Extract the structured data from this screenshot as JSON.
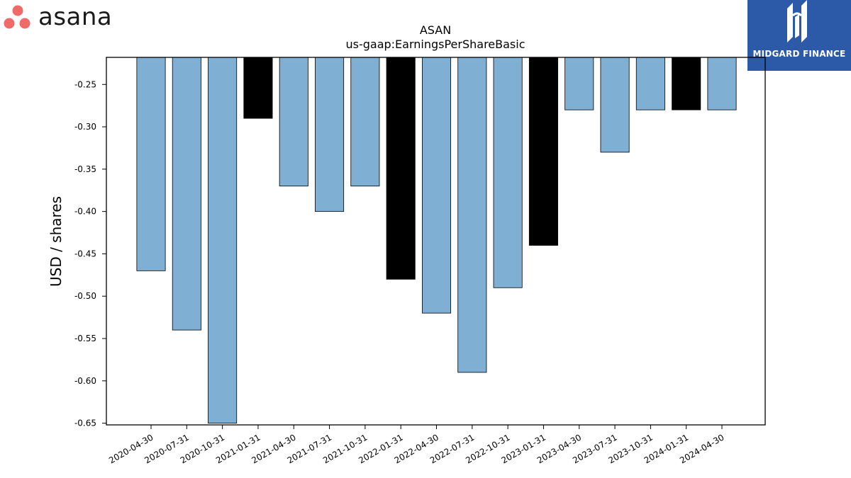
{
  "brand": {
    "company_logo_text": "asana",
    "company_logo_icon": "three-dots-icon",
    "company_logo_color": "#f06a6a",
    "publisher_logo_text": "MIDGARD FINANCE",
    "publisher_logo_color": "#2c5aa8"
  },
  "chart_data": {
    "type": "bar",
    "title": "ASAN",
    "subtitle": "us-gaap:EarningsPerShareBasic",
    "xlabel": "",
    "ylabel": "USD / shares",
    "ylim": [
      -0.652,
      -0.218
    ],
    "yticks": [
      -0.25,
      -0.3,
      -0.35,
      -0.4,
      -0.45,
      -0.5,
      -0.55,
      -0.6,
      -0.65
    ],
    "ytick_labels": [
      "-0.25",
      "-0.30",
      "-0.35",
      "-0.40",
      "-0.45",
      "-0.50",
      "-0.55",
      "-0.60",
      "-0.65"
    ],
    "grid": false,
    "categories": [
      "2020-04-30",
      "2020-07-31",
      "2020-10-31",
      "2021-01-31",
      "2021-04-30",
      "2021-07-31",
      "2021-10-31",
      "2022-01-31",
      "2022-04-30",
      "2022-07-31",
      "2022-10-31",
      "2023-01-31",
      "2023-04-30",
      "2023-07-31",
      "2023-10-31",
      "2024-01-31",
      "2024-04-30"
    ],
    "values": [
      -0.47,
      -0.54,
      -0.65,
      -0.29,
      -0.37,
      -0.4,
      -0.37,
      -0.48,
      -0.52,
      -0.59,
      -0.49,
      -0.44,
      -0.28,
      -0.33,
      -0.28,
      -0.28,
      -0.28
    ],
    "highlighted": [
      false,
      false,
      false,
      true,
      false,
      false,
      false,
      true,
      false,
      false,
      false,
      true,
      false,
      false,
      false,
      true,
      false
    ],
    "colors": {
      "default": "#7fafd3",
      "highlight": "#000000",
      "edge": "#000000"
    }
  }
}
